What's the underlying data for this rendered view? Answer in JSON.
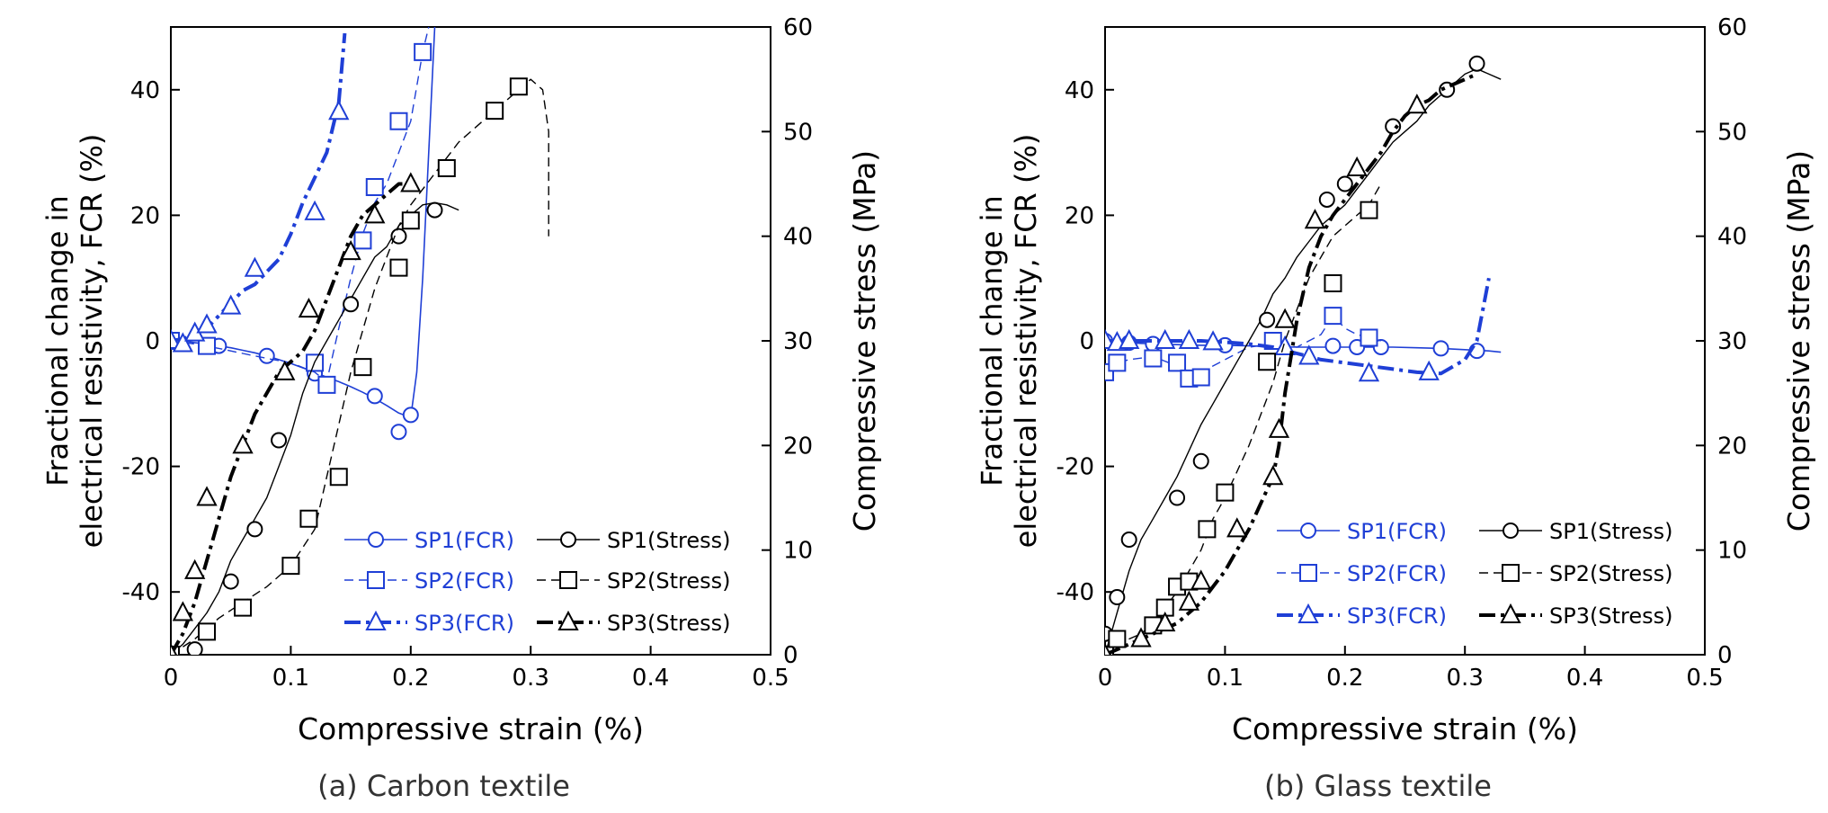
{
  "chart_data": [
    {
      "type": "line",
      "title": "(a) Carbon textile",
      "xlabel": "Compressive strain (%)",
      "ylabel_lines": [
        "Fractional change in",
        "electrical resistivity, FCR (%)"
      ],
      "y2label": "Compressive stress (MPa)",
      "xlim": [
        0,
        0.5
      ],
      "ylim": [
        -50,
        50
      ],
      "y2lim": [
        0,
        60
      ],
      "xticks": [
        "0",
        "0.1",
        "0.2",
        "0.3",
        "0.4",
        "0.5"
      ],
      "xtick_values": [
        0,
        0.1,
        0.2,
        0.3,
        0.4,
        0.5
      ],
      "yticks": [
        "-40",
        "-20",
        "0",
        "20",
        "40"
      ],
      "ytick_values": [
        -40,
        -20,
        0,
        20,
        40
      ],
      "y2ticks": [
        "0",
        "10",
        "20",
        "30",
        "40",
        "50",
        "60"
      ],
      "y2tick_values": [
        0,
        10,
        20,
        30,
        40,
        50,
        60
      ],
      "legend_position": "bottom-right",
      "series": [
        {
          "name": "SP1(FCR)",
          "axis": "left",
          "color": "#1f3fd6",
          "dash": "solid",
          "marker": "circle",
          "width": 1.6,
          "x": [
            0,
            0.01,
            0.02,
            0.03,
            0.04,
            0.05,
            0.06,
            0.07,
            0.08,
            0.09,
            0.1,
            0.11,
            0.12,
            0.13,
            0.14,
            0.15,
            0.16,
            0.17,
            0.18,
            0.19,
            0.2,
            0.205,
            0.21,
            0.215,
            0.22
          ],
          "y": [
            0,
            0,
            -0.3,
            -0.5,
            -0.8,
            -1.1,
            -1.5,
            -1.9,
            -2.4,
            -3,
            -3.6,
            -4.3,
            -5,
            -5.8,
            -6.5,
            -7.3,
            -8.2,
            -9.2,
            -10.3,
            -11.5,
            -12.2,
            -5,
            10,
            30,
            50
          ],
          "markers_x": [
            0,
            0.04,
            0.08,
            0.12,
            0.17,
            0.19,
            0.2
          ],
          "markers_y": [
            0,
            -0.8,
            -2.4,
            -5.2,
            -8.8,
            -14.5,
            -11.8
          ]
        },
        {
          "name": "SP2(FCR)",
          "axis": "left",
          "color": "#1f3fd6",
          "dash": "dashed",
          "marker": "square",
          "width": 1.4,
          "x": [
            0,
            0.02,
            0.04,
            0.06,
            0.08,
            0.1,
            0.12,
            0.13,
            0.14,
            0.15,
            0.16,
            0.17,
            0.18,
            0.19,
            0.2,
            0.21,
            0.215
          ],
          "y": [
            0,
            -0.5,
            -1.2,
            -2,
            -2.8,
            -3.5,
            -5,
            -6.5,
            2,
            10,
            17,
            22,
            25,
            30,
            35,
            46,
            50
          ],
          "markers_x": [
            0,
            0.03,
            0.13,
            0.12,
            0.16,
            0.17,
            0.19,
            0.21
          ],
          "markers_y": [
            0,
            -0.8,
            -7,
            -3.5,
            16,
            24.5,
            35,
            46
          ]
        },
        {
          "name": "SP3(FCR)",
          "axis": "left",
          "color": "#1f3fd6",
          "dash": "dashdot",
          "marker": "triangle",
          "width": 4,
          "x": [
            0,
            0.01,
            0.02,
            0.03,
            0.04,
            0.05,
            0.06,
            0.07,
            0.08,
            0.09,
            0.1,
            0.11,
            0.12,
            0.13,
            0.14,
            0.145
          ],
          "y": [
            0,
            0.3,
            1,
            2,
            4,
            6,
            8,
            9,
            11,
            13,
            17,
            22,
            26,
            30,
            38,
            49
          ],
          "markers_x": [
            0,
            0.01,
            0.02,
            0.03,
            0.05,
            0.07,
            0.12,
            0.14
          ],
          "markers_y": [
            0,
            -0.5,
            1.2,
            2.5,
            5.5,
            11.5,
            20.5,
            36.5
          ]
        },
        {
          "name": "SP1(Stress)",
          "axis": "right",
          "color": "#000000",
          "dash": "solid",
          "marker": "circle",
          "width": 1.4,
          "x": [
            0,
            0.01,
            0.02,
            0.03,
            0.04,
            0.05,
            0.06,
            0.07,
            0.08,
            0.09,
            0.1,
            0.11,
            0.12,
            0.13,
            0.14,
            0.15,
            0.16,
            0.17,
            0.18,
            0.19,
            0.2,
            0.21,
            0.22,
            0.23,
            0.24
          ],
          "y": [
            0,
            1,
            2.5,
            4,
            6,
            9,
            11,
            13,
            15,
            18,
            21,
            25,
            28,
            30,
            32,
            34,
            36,
            38,
            39,
            41,
            42,
            43,
            43.2,
            43,
            42.5
          ],
          "markers_x": [
            0.02,
            0.05,
            0.07,
            0.09,
            0.15,
            0.19,
            0.22
          ],
          "markers_y": [
            0.5,
            7,
            12,
            20.5,
            33.5,
            40,
            42.5
          ]
        },
        {
          "name": "SP2(Stress)",
          "axis": "right",
          "color": "#000000",
          "dash": "dashed",
          "marker": "square",
          "width": 1.4,
          "x": [
            0,
            0.02,
            0.04,
            0.06,
            0.08,
            0.1,
            0.12,
            0.13,
            0.14,
            0.15,
            0.16,
            0.17,
            0.18,
            0.19,
            0.2,
            0.22,
            0.24,
            0.26,
            0.28,
            0.3,
            0.31,
            0.315,
            0.315
          ],
          "y": [
            0,
            1.5,
            3.5,
            5,
            6.5,
            8.5,
            12,
            17,
            22,
            27,
            31,
            35,
            38,
            41,
            43,
            46,
            49,
            51,
            53,
            55,
            54,
            50,
            40
          ],
          "markers_x": [
            0,
            0.03,
            0.06,
            0.1,
            0.115,
            0.14,
            0.16,
            0.19,
            0.2,
            0.23,
            0.27,
            0.29
          ],
          "markers_y": [
            0,
            2.2,
            4.5,
            8.5,
            13,
            17,
            27.5,
            37,
            41.5,
            46.5,
            52,
            54.3
          ]
        },
        {
          "name": "SP3(Stress)",
          "axis": "right",
          "color": "#000000",
          "dash": "dashdot",
          "marker": "triangle",
          "width": 4,
          "x": [
            0,
            0.01,
            0.02,
            0.03,
            0.04,
            0.05,
            0.06,
            0.07,
            0.08,
            0.09,
            0.1,
            0.11,
            0.12,
            0.13,
            0.14,
            0.15,
            0.16,
            0.17,
            0.18,
            0.19,
            0.2
          ],
          "y": [
            0,
            2,
            5,
            9,
            13,
            17,
            20,
            23,
            25,
            27,
            28,
            29,
            31,
            34,
            37,
            40,
            42,
            43,
            44,
            45,
            45
          ],
          "markers_x": [
            0,
            0.01,
            0.02,
            0.03,
            0.06,
            0.095,
            0.115,
            0.15,
            0.17,
            0.2
          ],
          "markers_y": [
            0,
            4,
            8,
            15,
            20,
            27,
            33,
            38.5,
            42,
            45
          ]
        }
      ]
    },
    {
      "type": "line",
      "title": "(b) Glass textile",
      "xlabel": "Compressive strain (%)",
      "ylabel_lines": [
        "Fractional change in",
        "electrical resistivity, FCR (%)"
      ],
      "y2label": "Compressive stress (MPa)",
      "xlim": [
        0,
        0.5
      ],
      "ylim": [
        -50,
        50
      ],
      "y2lim": [
        0,
        60
      ],
      "xticks": [
        "0",
        "0.1",
        "0.2",
        "0.3",
        "0.4",
        "0.5"
      ],
      "xtick_values": [
        0,
        0.1,
        0.2,
        0.3,
        0.4,
        0.5
      ],
      "yticks": [
        "-40",
        "-20",
        "0",
        "20",
        "40"
      ],
      "ytick_values": [
        -40,
        -20,
        0,
        20,
        40
      ],
      "y2ticks": [
        "0",
        "10",
        "20",
        "30",
        "40",
        "50",
        "60"
      ],
      "y2tick_values": [
        0,
        10,
        20,
        30,
        40,
        50,
        60
      ],
      "legend_position": "bottom-right",
      "series": [
        {
          "name": "SP1(FCR)",
          "axis": "left",
          "color": "#1f3fd6",
          "dash": "solid",
          "marker": "circle",
          "width": 1.6,
          "x": [
            0,
            0.02,
            0.04,
            0.06,
            0.08,
            0.1,
            0.12,
            0.14,
            0.16,
            0.18,
            0.2,
            0.22,
            0.24,
            0.26,
            0.28,
            0.3,
            0.32,
            0.33
          ],
          "y": [
            0,
            -0.3,
            -0.5,
            -0.6,
            -0.7,
            -0.7,
            -0.8,
            -0.9,
            -1,
            -1,
            -1,
            -1,
            -1,
            -1.1,
            -1.2,
            -1.4,
            -1.6,
            -1.8
          ],
          "markers_x": [
            0,
            0.02,
            0.04,
            0.1,
            0.19,
            0.21,
            0.23,
            0.28,
            0.31
          ],
          "markers_y": [
            0,
            -0.3,
            -0.5,
            -0.7,
            -0.8,
            -1,
            -1,
            -1.2,
            -1.6
          ]
        },
        {
          "name": "SP2(FCR)",
          "axis": "left",
          "color": "#1f3fd6",
          "dash": "dashed",
          "marker": "square",
          "width": 1.4,
          "x": [
            0,
            0.02,
            0.04,
            0.06,
            0.07,
            0.08,
            0.1,
            0.12,
            0.14,
            0.16,
            0.18,
            0.19,
            0.2,
            0.21,
            0.22,
            0.23
          ],
          "y": [
            -4,
            -3,
            -2.5,
            -4,
            -5.5,
            -5,
            -3,
            -1,
            -0.5,
            -1,
            1,
            4,
            2,
            1,
            0.5,
            0
          ],
          "markers_x": [
            0,
            0.01,
            0.04,
            0.06,
            0.07,
            0.08,
            0.14,
            0.19,
            0.22
          ],
          "markers_y": [
            -5,
            -3.5,
            -2.8,
            -3.5,
            -6,
            -5.8,
            0,
            4,
            0.5
          ]
        },
        {
          "name": "SP3(FCR)",
          "axis": "left",
          "color": "#1f3fd6",
          "dash": "dashdot",
          "marker": "triangle",
          "width": 4,
          "x": [
            0,
            0.02,
            0.04,
            0.06,
            0.08,
            0.1,
            0.12,
            0.14,
            0.16,
            0.18,
            0.2,
            0.22,
            0.24,
            0.26,
            0.28,
            0.3,
            0.31,
            0.32
          ],
          "y": [
            0,
            0,
            0,
            0,
            0,
            -0.2,
            -0.5,
            -1,
            -2,
            -3,
            -3.5,
            -4,
            -4.5,
            -5,
            -5.2,
            -3,
            0,
            10
          ],
          "markers_x": [
            0,
            0.01,
            0.02,
            0.05,
            0.07,
            0.09,
            0.15,
            0.17,
            0.22,
            0.27
          ],
          "markers_y": [
            0,
            -0.3,
            0,
            0,
            0,
            -0.2,
            -1,
            -2.5,
            -5.2,
            -5
          ]
        },
        {
          "name": "SP1(Stress)",
          "axis": "right",
          "color": "#000000",
          "dash": "solid",
          "marker": "circle",
          "width": 1.4,
          "x": [
            0,
            0.01,
            0.02,
            0.03,
            0.04,
            0.05,
            0.06,
            0.07,
            0.08,
            0.09,
            0.1,
            0.11,
            0.12,
            0.13,
            0.14,
            0.15,
            0.16,
            0.17,
            0.18,
            0.19,
            0.2,
            0.21,
            0.22,
            0.23,
            0.24,
            0.25,
            0.26,
            0.27,
            0.28,
            0.29,
            0.3,
            0.31,
            0.32,
            0.33
          ],
          "y": [
            0,
            4,
            8,
            11,
            13,
            15,
            17,
            19.5,
            22,
            24,
            26,
            28,
            30,
            32,
            34.5,
            36,
            38,
            39.5,
            41,
            42,
            43,
            44.5,
            46,
            47.5,
            49,
            50,
            51,
            52.5,
            53.5,
            54.5,
            55.5,
            56,
            55.5,
            55
          ],
          "markers_x": [
            0,
            0.01,
            0.02,
            0.06,
            0.08,
            0.135,
            0.185,
            0.2,
            0.24,
            0.285,
            0.31
          ],
          "markers_y": [
            2,
            5.5,
            11,
            15,
            18.5,
            32,
            43.5,
            45,
            50.5,
            54,
            56.5
          ]
        },
        {
          "name": "SP2(Stress)",
          "axis": "right",
          "color": "#000000",
          "dash": "dashed",
          "marker": "square",
          "width": 1.4,
          "x": [
            0,
            0.01,
            0.02,
            0.03,
            0.04,
            0.05,
            0.06,
            0.07,
            0.08,
            0.09,
            0.1,
            0.11,
            0.12,
            0.13,
            0.14,
            0.15,
            0.16,
            0.17,
            0.18,
            0.19,
            0.2,
            0.21,
            0.22,
            0.23
          ],
          "y": [
            0,
            1,
            1.5,
            2,
            3,
            4.5,
            6,
            8,
            10,
            13,
            15,
            17.5,
            20,
            23,
            26,
            30,
            33,
            36,
            38,
            40,
            41,
            42,
            43,
            45
          ],
          "markers_x": [
            0,
            0.01,
            0.04,
            0.05,
            0.06,
            0.07,
            0.085,
            0.1,
            0.135,
            0.19,
            0.22
          ],
          "markers_y": [
            0,
            1.5,
            2.8,
            4.5,
            6.5,
            7,
            12,
            15.5,
            28,
            35.5,
            42.5
          ]
        },
        {
          "name": "SP3(Stress)",
          "axis": "right",
          "color": "#000000",
          "dash": "dashdot",
          "marker": "triangle",
          "width": 4,
          "x": [
            0,
            0.02,
            0.04,
            0.06,
            0.08,
            0.1,
            0.11,
            0.12,
            0.13,
            0.14,
            0.145,
            0.15,
            0.16,
            0.17,
            0.18,
            0.19,
            0.2,
            0.21,
            0.22,
            0.23,
            0.24,
            0.25,
            0.26,
            0.27,
            0.28,
            0.29,
            0.3,
            0.31
          ],
          "y": [
            0,
            1,
            2,
            3,
            5,
            8,
            10,
            12,
            14.5,
            17,
            20,
            25,
            32,
            37,
            40,
            42,
            43.5,
            45,
            46.5,
            48,
            50,
            51.5,
            52.5,
            53,
            54,
            54.5,
            55,
            55.5
          ],
          "markers_x": [
            0,
            0.03,
            0.05,
            0.07,
            0.08,
            0.11,
            0.14,
            0.145,
            0.15,
            0.175,
            0.21,
            0.26
          ],
          "markers_y": [
            0,
            1.5,
            3,
            5,
            7,
            12,
            17,
            21.5,
            32,
            41.5,
            46.5,
            52.5
          ]
        }
      ]
    }
  ]
}
